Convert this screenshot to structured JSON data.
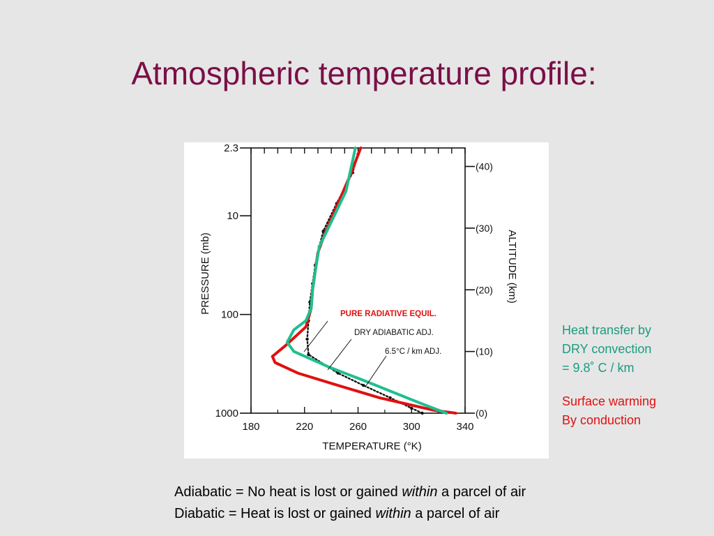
{
  "slide": {
    "title": "Atmospheric temperature profile:"
  },
  "annotations": {
    "green_lines": [
      "Heat transfer by",
      "DRY convection",
      "= 9.8˚ C / km"
    ],
    "red_lines": [
      "Surface warming",
      "By conduction"
    ]
  },
  "definitions": {
    "adiabatic": {
      "before": "Adiabatic = No heat is lost or gained ",
      "emph": "within",
      "after": " a parcel of air"
    },
    "diabatic": {
      "before": "Diabatic = Heat is lost or gained ",
      "emph": "within",
      "after": " a parcel of air"
    }
  },
  "chart_data": {
    "type": "line",
    "xlabel": "TEMPERATURE (°K)",
    "ylabel": "PRESSURE (mb)",
    "y2label": "ALTITUDE (km)",
    "x_ticks": [
      "180",
      "220",
      "260",
      "300",
      "340"
    ],
    "pressure_ticks": [
      "2.3",
      "10",
      "100",
      "1000"
    ],
    "altitude_ticks": [
      "(40)",
      "(30)",
      "(20)",
      "(10)",
      "(0)"
    ],
    "xlim": [
      180,
      340
    ],
    "altitude_range_km": [
      0,
      43
    ],
    "chart_annotations": [
      "PURE RADIATIVE EQUIL.",
      "DRY ADIABATIC ADJ.",
      "6.5°C / km ADJ."
    ],
    "colors": {
      "red": "#e01010",
      "green": "#1fbf8f",
      "black": "#111111"
    },
    "series": [
      {
        "name": "PURE RADIATIVE EQUIL.",
        "color": "red",
        "points": [
          [
            333,
            0
          ],
          [
            316,
            0.5
          ],
          [
            300,
            1.3
          ],
          [
            276,
            2.5
          ],
          [
            245,
            4.5
          ],
          [
            215,
            6.5
          ],
          [
            198,
            8.2
          ],
          [
            196,
            9.2
          ],
          [
            206,
            11
          ],
          [
            221,
            14
          ],
          [
            225,
            17
          ],
          [
            226,
            20
          ],
          [
            228,
            23
          ],
          [
            230,
            26
          ],
          [
            235,
            29
          ],
          [
            243,
            33
          ],
          [
            255,
            39
          ],
          [
            262,
            43
          ]
        ]
      },
      {
        "name": "DRY ADIABATIC ADJ.",
        "color": "black",
        "points": [
          [
            308,
            0
          ],
          [
            300,
            0.8
          ],
          [
            284,
            2.5
          ],
          [
            264,
            4.5
          ],
          [
            245,
            6.5
          ],
          [
            223,
            9.5
          ],
          [
            222,
            12
          ],
          [
            223,
            15
          ],
          [
            224,
            18
          ],
          [
            226,
            21
          ],
          [
            228,
            24
          ],
          [
            231,
            27
          ],
          [
            234,
            29.5
          ],
          [
            244,
            34
          ],
          [
            256,
            39
          ],
          [
            260,
            42
          ]
        ]
      },
      {
        "name": "6.5°C / km ADJ.",
        "color": "green",
        "points": [
          [
            326,
            0
          ],
          [
            308,
            1.5
          ],
          [
            285,
            3.5
          ],
          [
            262,
            5.5
          ],
          [
            238,
            7.5
          ],
          [
            212,
            10
          ],
          [
            207,
            11.5
          ],
          [
            212,
            13.5
          ],
          [
            221,
            15
          ],
          [
            225,
            17
          ],
          [
            226,
            20
          ],
          [
            228,
            23
          ],
          [
            231,
            27
          ],
          [
            240,
            31
          ],
          [
            251,
            36
          ],
          [
            258,
            43
          ]
        ]
      }
    ]
  }
}
